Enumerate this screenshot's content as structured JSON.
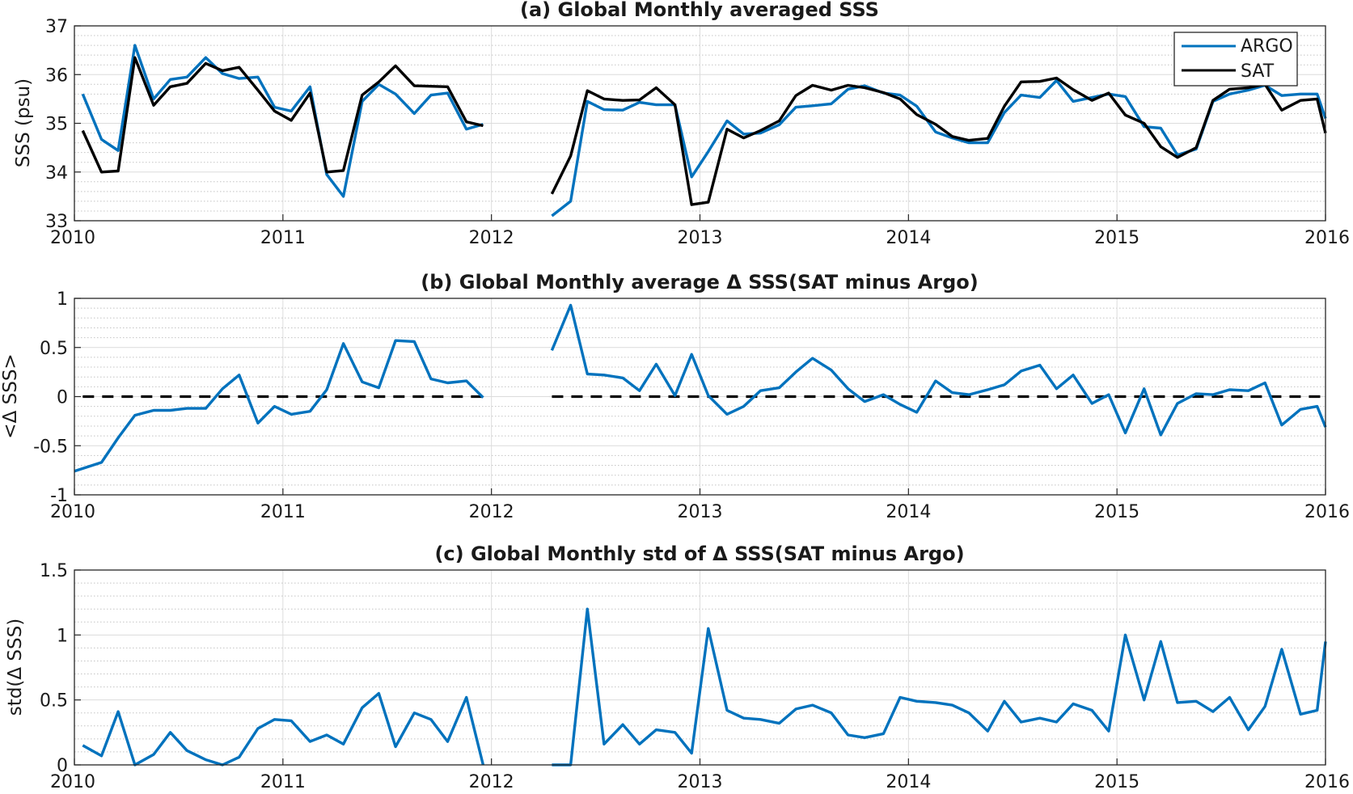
{
  "figure": {
    "x_ticks": [
      "2010",
      "2011",
      "2012",
      "2013",
      "2014",
      "2015",
      "2016"
    ]
  },
  "chart_data": [
    {
      "type": "line",
      "title": "(a) Global Monthly averaged SSS",
      "xlabel": "",
      "ylabel": "SSS (psu)",
      "xlim": [
        2010,
        2016
      ],
      "ylim": [
        33,
        37
      ],
      "y_ticks": [
        "33",
        "34",
        "35",
        "36",
        "37"
      ],
      "grid": true,
      "legend": "top-right",
      "series": [
        {
          "name": "ARGO",
          "color": "#0072BD",
          "x": [
            2010.04,
            2010.13,
            2010.21,
            2010.29,
            2010.38,
            2010.46,
            2010.54,
            2010.63,
            2010.71,
            2010.79,
            2010.88,
            2010.96,
            2011.04,
            2011.13,
            2011.21,
            2011.29,
            2011.38,
            2011.46,
            2011.54,
            2011.63,
            2011.71,
            2011.79,
            2011.88,
            2011.96,
            null,
            2012.29,
            2012.38,
            2012.46,
            2012.54,
            2012.63,
            2012.71,
            2012.79,
            2012.88,
            2012.96,
            2013.04,
            2013.13,
            2013.21,
            2013.29,
            2013.38,
            2013.46,
            2013.54,
            2013.63,
            2013.71,
            2013.79,
            2013.88,
            2013.96,
            2014.04,
            2014.13,
            2014.21,
            2014.29,
            2014.38,
            2014.46,
            2014.54,
            2014.63,
            2014.71,
            2014.79,
            2014.88,
            2014.96,
            2015.04,
            2015.13,
            2015.21,
            2015.29,
            2015.38,
            2015.46,
            2015.54,
            2015.63,
            2015.71,
            2015.79,
            2015.88,
            2015.96,
            2016.0
          ],
          "values": [
            35.6,
            34.67,
            34.44,
            36.6,
            35.5,
            35.9,
            35.95,
            36.35,
            36.02,
            35.92,
            35.95,
            35.33,
            35.25,
            35.75,
            33.95,
            33.5,
            35.45,
            35.8,
            35.6,
            35.2,
            35.58,
            35.62,
            34.88,
            34.98,
            null,
            33.1,
            33.4,
            35.45,
            35.28,
            35.27,
            35.43,
            35.38,
            35.38,
            33.9,
            34.42,
            35.05,
            34.78,
            34.8,
            34.97,
            35.33,
            35.36,
            35.4,
            35.7,
            35.77,
            35.62,
            35.58,
            35.35,
            34.82,
            34.7,
            34.6,
            34.6,
            35.22,
            35.58,
            35.53,
            35.88,
            35.45,
            35.53,
            35.6,
            35.55,
            34.93,
            34.9,
            34.35,
            34.47,
            35.45,
            35.6,
            35.68,
            35.78,
            35.57,
            35.6,
            35.6,
            35.1
          ]
        },
        {
          "name": "SAT",
          "color": "#000000",
          "x": [
            2010.04,
            2010.13,
            2010.21,
            2010.29,
            2010.38,
            2010.46,
            2010.54,
            2010.63,
            2010.71,
            2010.79,
            2010.88,
            2010.96,
            2011.04,
            2011.13,
            2011.21,
            2011.29,
            2011.38,
            2011.46,
            2011.54,
            2011.63,
            2011.71,
            2011.79,
            2011.88,
            2011.96,
            null,
            2012.29,
            2012.38,
            2012.46,
            2012.54,
            2012.63,
            2012.71,
            2012.79,
            2012.88,
            2012.96,
            2013.04,
            2013.13,
            2013.21,
            2013.29,
            2013.38,
            2013.46,
            2013.54,
            2013.63,
            2013.71,
            2013.79,
            2013.88,
            2013.96,
            2014.04,
            2014.13,
            2014.21,
            2014.29,
            2014.38,
            2014.46,
            2014.54,
            2014.63,
            2014.71,
            2014.79,
            2014.88,
            2014.96,
            2015.04,
            2015.13,
            2015.21,
            2015.29,
            2015.38,
            2015.46,
            2015.54,
            2015.63,
            2015.71,
            2015.79,
            2015.88,
            2015.96,
            2016.0
          ],
          "values": [
            34.85,
            34.0,
            34.02,
            36.35,
            35.37,
            35.75,
            35.82,
            36.23,
            36.08,
            36.15,
            35.68,
            35.25,
            35.06,
            35.62,
            34.0,
            34.03,
            35.58,
            35.85,
            36.18,
            35.77,
            35.76,
            35.75,
            35.03,
            34.95,
            null,
            33.55,
            34.33,
            35.67,
            35.5,
            35.47,
            35.48,
            35.73,
            35.38,
            33.33,
            33.38,
            34.88,
            34.7,
            34.85,
            35.05,
            35.57,
            35.78,
            35.68,
            35.78,
            35.73,
            35.63,
            35.5,
            35.18,
            34.98,
            34.73,
            34.65,
            34.69,
            35.35,
            35.85,
            35.86,
            35.93,
            35.69,
            35.47,
            35.62,
            35.17,
            35.0,
            34.52,
            34.3,
            34.5,
            35.47,
            35.7,
            35.73,
            35.8,
            35.27,
            35.47,
            35.5,
            34.8
          ]
        }
      ]
    },
    {
      "type": "line",
      "title": "(b) Global Monthly average Δ SSS(SAT minus Argo)",
      "xlabel": "",
      "ylabel": "<Δ SSS>",
      "xlim": [
        2010,
        2016
      ],
      "ylim": [
        -1,
        1
      ],
      "y_ticks": [
        "-1",
        "-0.5",
        "0",
        "0.5",
        "1"
      ],
      "grid": true,
      "zero_line": "dashed",
      "series": [
        {
          "color": "#0072BD",
          "x": [
            2010.0,
            2010.13,
            2010.21,
            2010.29,
            2010.38,
            2010.46,
            2010.54,
            2010.63,
            2010.71,
            2010.79,
            2010.88,
            2010.96,
            2011.04,
            2011.13,
            2011.21,
            2011.29,
            2011.38,
            2011.46,
            2011.54,
            2011.63,
            2011.71,
            2011.79,
            2011.88,
            2011.96,
            null,
            2012.29,
            2012.38,
            2012.46,
            2012.54,
            2012.63,
            2012.71,
            2012.79,
            2012.88,
            2012.96,
            2013.04,
            2013.13,
            2013.21,
            2013.29,
            2013.38,
            2013.46,
            2013.54,
            2013.63,
            2013.71,
            2013.79,
            2013.88,
            2013.96,
            2014.04,
            2014.13,
            2014.21,
            2014.29,
            2014.38,
            2014.46,
            2014.54,
            2014.63,
            2014.71,
            2014.79,
            2014.88,
            2014.96,
            2015.04,
            2015.13,
            2015.21,
            2015.29,
            2015.38,
            2015.46,
            2015.54,
            2015.63,
            2015.71,
            2015.79,
            2015.88,
            2015.96,
            2016.0
          ],
          "values": [
            -0.76,
            -0.67,
            -0.42,
            -0.19,
            -0.14,
            -0.14,
            -0.12,
            -0.12,
            0.08,
            0.22,
            -0.27,
            -0.1,
            -0.18,
            -0.15,
            0.07,
            0.54,
            0.15,
            0.09,
            0.57,
            0.56,
            0.18,
            0.14,
            0.16,
            -0.01,
            null,
            0.47,
            0.93,
            0.23,
            0.22,
            0.19,
            0.06,
            0.33,
            0.01,
            0.43,
            0.01,
            -0.18,
            -0.1,
            0.06,
            0.09,
            0.25,
            0.39,
            0.27,
            0.08,
            -0.05,
            0.02,
            -0.08,
            -0.16,
            0.16,
            0.04,
            0.02,
            0.07,
            0.12,
            0.26,
            0.32,
            0.08,
            0.22,
            -0.07,
            0.02,
            -0.37,
            0.08,
            -0.39,
            -0.07,
            0.03,
            0.02,
            0.07,
            0.06,
            0.14,
            -0.29,
            -0.13,
            -0.1,
            -0.31
          ]
        }
      ]
    },
    {
      "type": "line",
      "title": "(c) Global Monthly std of Δ SSS(SAT minus Argo)",
      "xlabel": "",
      "ylabel": "std(Δ SSS)",
      "xlim": [
        2010,
        2016
      ],
      "ylim": [
        0,
        1.5
      ],
      "y_ticks": [
        "0",
        "0.5",
        "1",
        "1.5"
      ],
      "grid": true,
      "series": [
        {
          "color": "#0072BD",
          "x": [
            2010.04,
            2010.13,
            2010.21,
            2010.29,
            2010.38,
            2010.46,
            2010.54,
            2010.63,
            2010.71,
            2010.79,
            2010.88,
            2010.96,
            2011.04,
            2011.13,
            2011.21,
            2011.29,
            2011.38,
            2011.46,
            2011.54,
            2011.63,
            2011.71,
            2011.79,
            2011.88,
            2011.96,
            null,
            2012.29,
            2012.38,
            2012.46,
            2012.54,
            2012.63,
            2012.71,
            2012.79,
            2012.88,
            2012.96,
            2013.04,
            2013.13,
            2013.21,
            2013.29,
            2013.38,
            2013.46,
            2013.54,
            2013.63,
            2013.71,
            2013.79,
            2013.88,
            2013.96,
            2014.04,
            2014.13,
            2014.21,
            2014.29,
            2014.38,
            2014.46,
            2014.54,
            2014.63,
            2014.71,
            2014.79,
            2014.88,
            2014.96,
            2015.04,
            2015.13,
            2015.21,
            2015.29,
            2015.38,
            2015.46,
            2015.54,
            2015.63,
            2015.71,
            2015.79,
            2015.88,
            2015.96,
            2016.0
          ],
          "values": [
            0.15,
            0.07,
            0.41,
            0.0,
            0.08,
            0.25,
            0.11,
            0.04,
            0.0,
            0.06,
            0.28,
            0.35,
            0.34,
            0.18,
            0.23,
            0.16,
            0.44,
            0.55,
            0.14,
            0.4,
            0.35,
            0.18,
            0.52,
            0.0,
            null,
            0.0,
            0.0,
            1.2,
            0.16,
            0.31,
            0.16,
            0.27,
            0.25,
            0.09,
            1.05,
            0.42,
            0.36,
            0.35,
            0.32,
            0.43,
            0.46,
            0.4,
            0.23,
            0.21,
            0.24,
            0.52,
            0.49,
            0.48,
            0.46,
            0.4,
            0.26,
            0.49,
            0.33,
            0.36,
            0.33,
            0.47,
            0.42,
            0.26,
            1.0,
            0.5,
            0.95,
            0.48,
            0.49,
            0.41,
            0.52,
            0.27,
            0.45,
            0.89,
            0.39,
            0.42,
            0.95
          ]
        }
      ]
    }
  ]
}
